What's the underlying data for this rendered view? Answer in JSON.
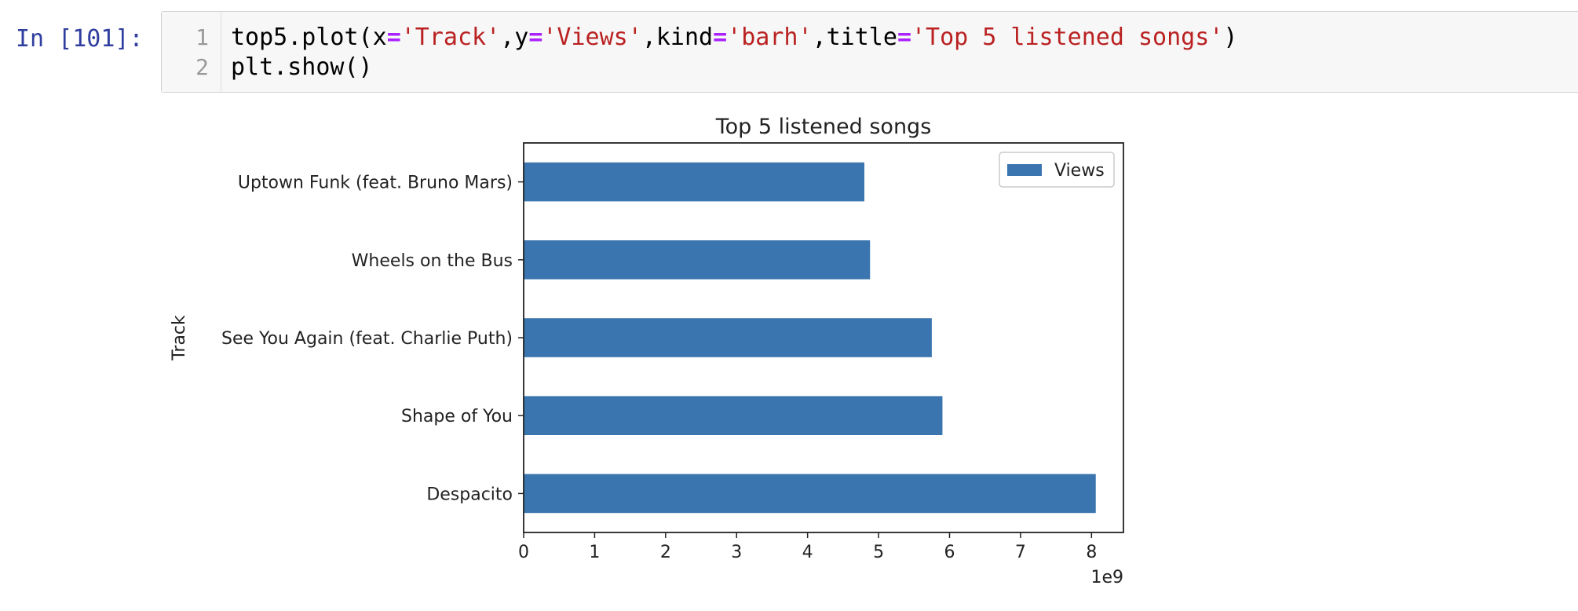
{
  "cell": {
    "prompt": "In [101]:",
    "lines": [
      {
        "number": "1",
        "tokens": [
          {
            "t": "top5.plot(x",
            "c": "plain"
          },
          {
            "t": "=",
            "c": "op"
          },
          {
            "t": "'Track'",
            "c": "str"
          },
          {
            "t": ",y",
            "c": "plain"
          },
          {
            "t": "=",
            "c": "op"
          },
          {
            "t": "'Views'",
            "c": "str"
          },
          {
            "t": ",kind",
            "c": "plain"
          },
          {
            "t": "=",
            "c": "op"
          },
          {
            "t": "'barh'",
            "c": "str"
          },
          {
            "t": ",title",
            "c": "plain"
          },
          {
            "t": "=",
            "c": "op"
          },
          {
            "t": "'Top 5 listened songs'",
            "c": "str"
          },
          {
            "t": ")",
            "c": "plain"
          }
        ]
      },
      {
        "number": "2",
        "tokens": [
          {
            "t": "plt.show()",
            "c": "plain"
          }
        ]
      }
    ]
  },
  "colors": {
    "bar": "#3a75af",
    "prompt": "#303f9f",
    "string": "#ba2121",
    "operator": "#aa22ff"
  },
  "chart_data": {
    "type": "bar",
    "orientation": "horizontal",
    "title": "Top 5 listened songs",
    "ylabel": "Track",
    "xlabel": "",
    "categories": [
      "Despacito",
      "Shape of You",
      "See You Again (feat. Charlie Puth)",
      "Wheels on the Bus",
      "Uptown Funk (feat. Bruno Mars)"
    ],
    "series": [
      {
        "name": "Views",
        "values": [
          8060000000.0,
          5900000000.0,
          5750000000.0,
          4880000000.0,
          4800000000.0
        ]
      }
    ],
    "xlim": [
      0,
      8450000000.0
    ],
    "xticks": [
      0,
      1,
      2,
      3,
      4,
      5,
      6,
      7,
      8
    ],
    "xticklabels": [
      "0",
      "1",
      "2",
      "3",
      "4",
      "5",
      "6",
      "7",
      "8"
    ],
    "x_offset_label": "1e9",
    "legend": {
      "position": "upper right",
      "entries": [
        "Views"
      ]
    },
    "grid": false
  }
}
